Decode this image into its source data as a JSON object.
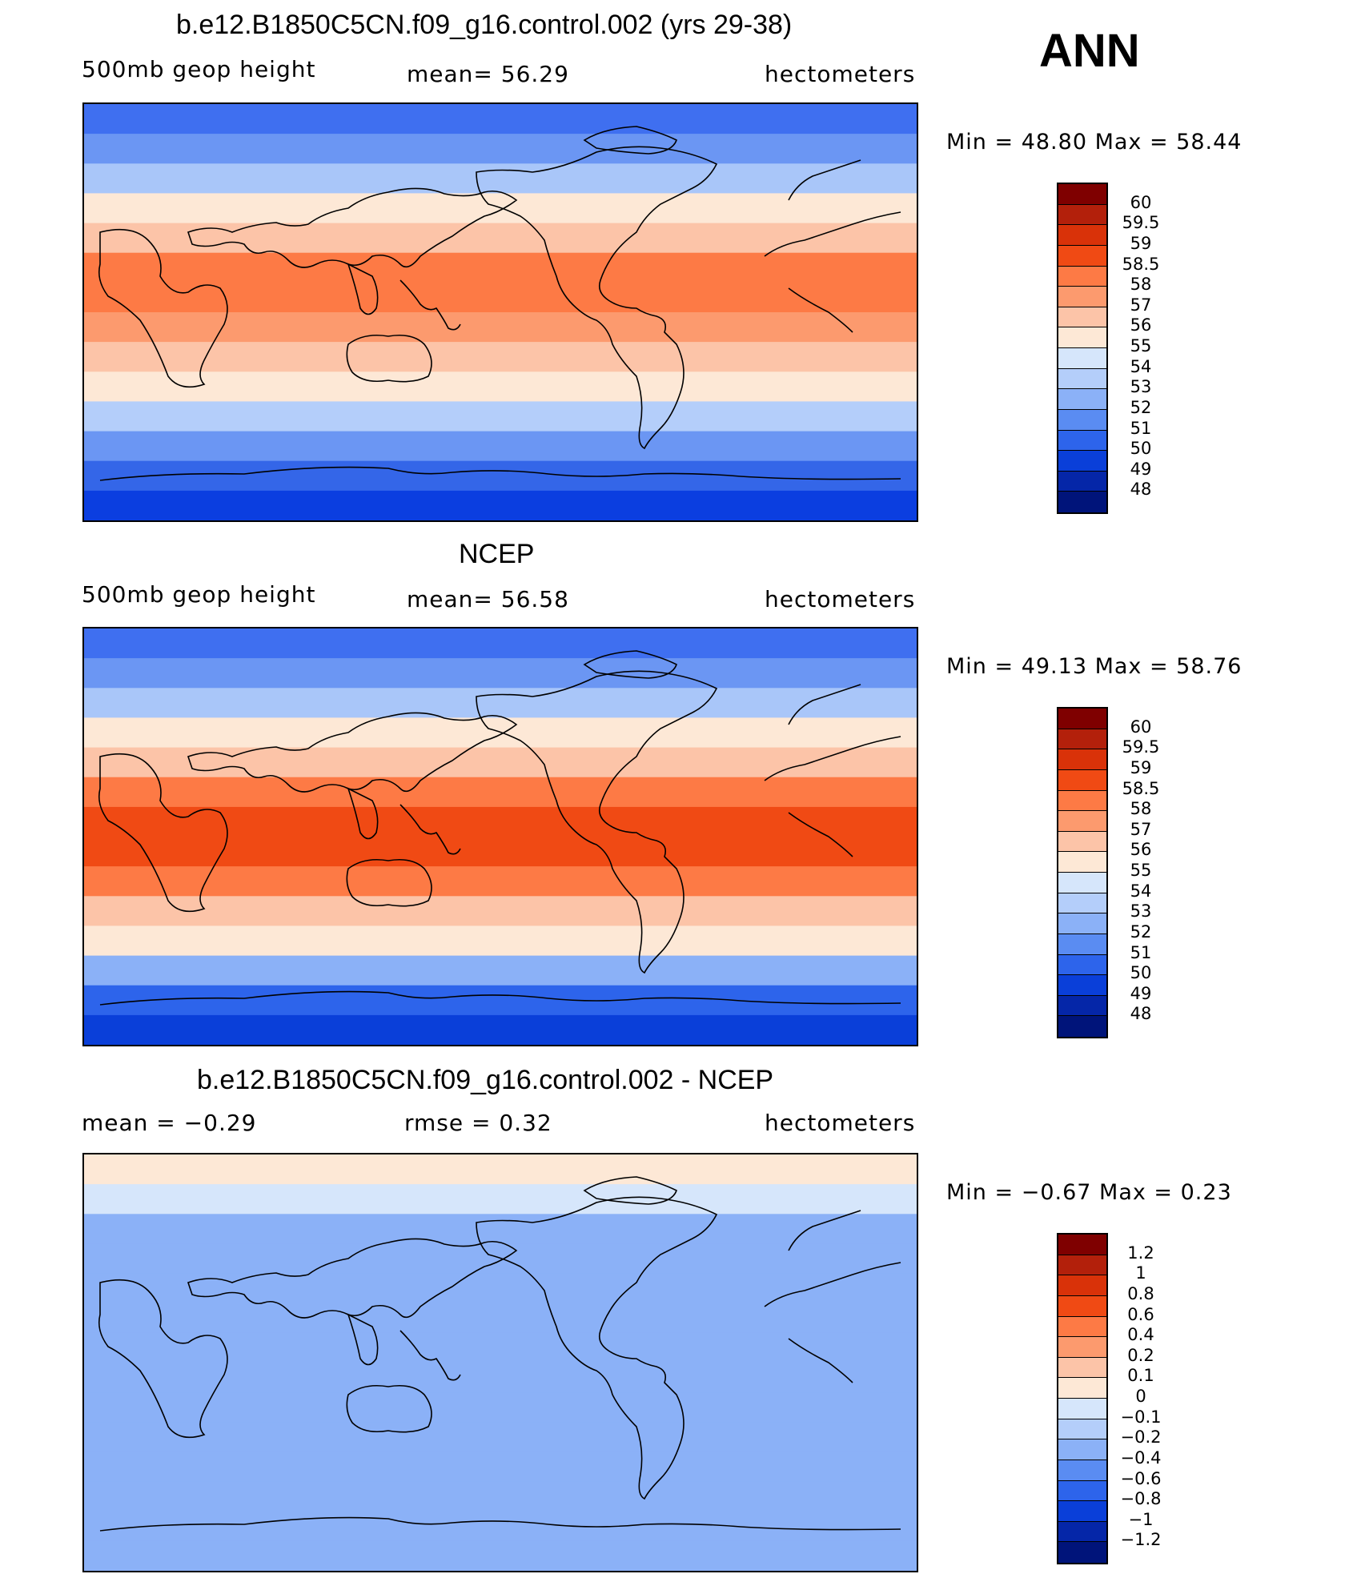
{
  "annotation": "ANN",
  "units_label": "hectometers",
  "variable_label": "500mb geop height",
  "panels": [
    {
      "title": "b.e12.B1850C5CN.f09_g16.control.002 (yrs 29-38)",
      "left_text": "500mb geop height",
      "mid_text": "mean=   56.29",
      "right_text": "hectometers",
      "stats": "Min =   48.80 Max =   58.44",
      "levels": [
        "60",
        "59.5",
        "59",
        "58.5",
        "58",
        "57",
        "56",
        "55",
        "54",
        "53",
        "52",
        "51",
        "50",
        "49",
        "48"
      ],
      "colors": [
        "#7f0000",
        "#b3200b",
        "#d93209",
        "#f04a14",
        "#fd7a45",
        "#fc9a6e",
        "#fcc4a8",
        "#fde8d6",
        "#d6e6fb",
        "#b4cefa",
        "#8bb1f7",
        "#5a8cf2",
        "#2d64eb",
        "#0a3fd9",
        "#0526a8",
        "#00147a"
      ],
      "bands": [
        "#3f6ff0",
        "#6b96f3",
        "#a9c6f9",
        "#fde8d6",
        "#fcc4a8",
        "#fd7a45",
        "#fd7a45",
        "#fc9a6e",
        "#fcc4a8",
        "#fde8d6",
        "#b4cefa",
        "#6b96f3",
        "#3466e8",
        "#0b3ee0"
      ]
    },
    {
      "title": "NCEP",
      "left_text": "500mb geop height",
      "mid_text": "mean=   56.58",
      "right_text": "hectometers",
      "stats": "Min =   49.13 Max =   58.76",
      "levels": [
        "60",
        "59.5",
        "59",
        "58.5",
        "58",
        "57",
        "56",
        "55",
        "54",
        "53",
        "52",
        "51",
        "50",
        "49",
        "48"
      ],
      "colors": [
        "#7f0000",
        "#b3200b",
        "#d93209",
        "#f04a14",
        "#fd7a45",
        "#fc9a6e",
        "#fcc4a8",
        "#fde8d6",
        "#d6e6fb",
        "#b4cefa",
        "#8bb1f7",
        "#5a8cf2",
        "#2d64eb",
        "#0a3fd9",
        "#0526a8",
        "#00147a"
      ],
      "bands": [
        "#3f6ff0",
        "#6b96f3",
        "#a9c6f9",
        "#fde8d6",
        "#fcc4a8",
        "#fd7a45",
        "#f04a14",
        "#f04a14",
        "#fd7a45",
        "#fcc4a8",
        "#fde8d6",
        "#8bb1f7",
        "#2d64eb",
        "#0a3fd9"
      ]
    },
    {
      "title": "b.e12.B1850C5CN.f09_g16.control.002 - NCEP",
      "left_text": "mean =   −0.29",
      "mid_text": "rmse =    0.32",
      "right_text": "hectometers",
      "stats": "Min =   −0.67 Max =    0.23",
      "levels": [
        "1.2",
        "1",
        "0.8",
        "0.6",
        "0.4",
        "0.2",
        "0.1",
        "0",
        "−0.1",
        "−0.2",
        "−0.4",
        "−0.6",
        "−0.8",
        "−1",
        "−1.2"
      ],
      "colors": [
        "#7f0000",
        "#b3200b",
        "#d93209",
        "#f04a14",
        "#fd7a45",
        "#fc9a6e",
        "#fcc4a8",
        "#fde8d6",
        "#d6e6fb",
        "#b4cefa",
        "#8bb1f7",
        "#5a8cf2",
        "#2d64eb",
        "#0a3fd9",
        "#0526a8",
        "#00147a"
      ],
      "bands": [
        "#fde8d6",
        "#d6e6fb",
        "#8bb1f7",
        "#8bb1f7",
        "#8bb1f7",
        "#8bb1f7",
        "#8bb1f7",
        "#8bb1f7",
        "#8bb1f7",
        "#8bb1f7",
        "#8bb1f7",
        "#8bb1f7",
        "#8bb1f7",
        "#8bb1f7"
      ]
    }
  ]
}
